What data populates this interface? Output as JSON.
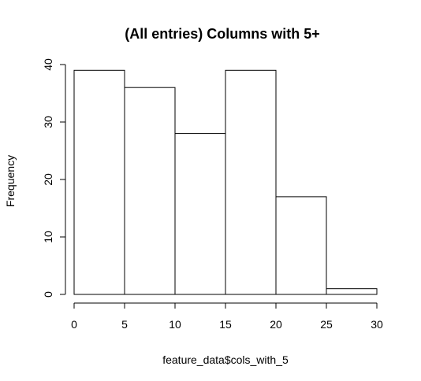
{
  "chart_data": {
    "type": "bar",
    "title": "(All entries) Columns with 5+",
    "xlabel": "feature_data$cols_with_5",
    "ylabel": "Frequency",
    "bins": [
      {
        "x0": 0,
        "x1": 5,
        "count": 39
      },
      {
        "x0": 5,
        "x1": 10,
        "count": 36
      },
      {
        "x0": 10,
        "x1": 15,
        "count": 28
      },
      {
        "x0": 15,
        "x1": 20,
        "count": 39
      },
      {
        "x0": 20,
        "x1": 25,
        "count": 17
      },
      {
        "x0": 25,
        "x1": 30,
        "count": 1
      }
    ],
    "xlim": [
      0,
      30
    ],
    "ylim": [
      0,
      40
    ],
    "x_ticks": [
      "0",
      "5",
      "10",
      "15",
      "20",
      "25",
      "30"
    ],
    "y_ticks": [
      "0",
      "10",
      "20",
      "30",
      "40"
    ],
    "grid": false,
    "legend": "none"
  }
}
